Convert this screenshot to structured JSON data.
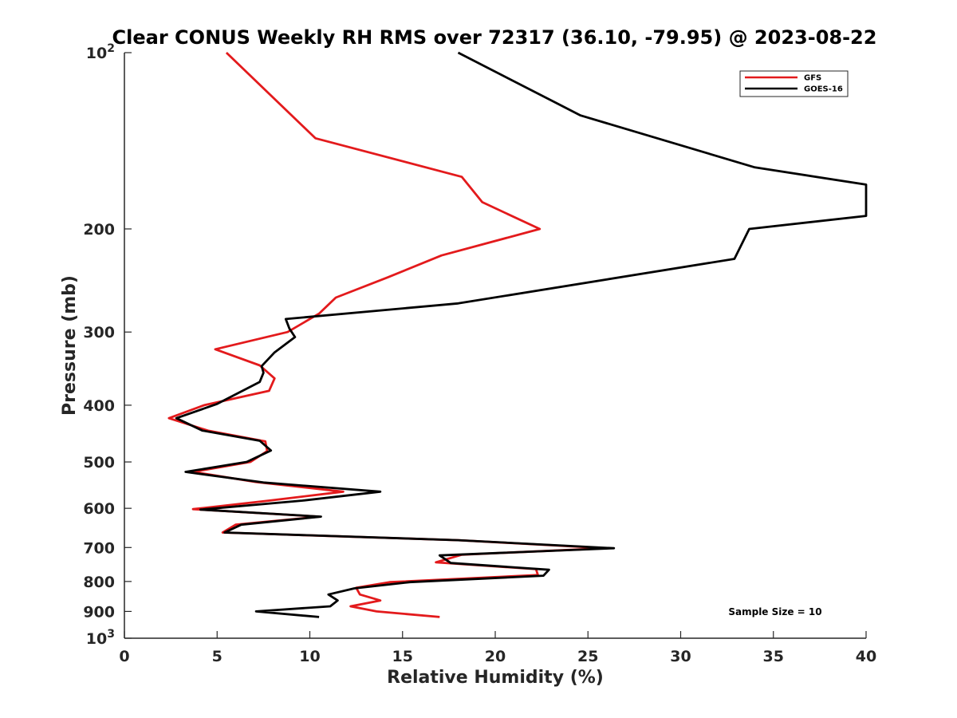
{
  "chart_data": {
    "type": "line",
    "title": "Clear CONUS Weekly RH RMS over 72317 (36.10, -79.95) @ 2023-08-22",
    "xlabel": "Relative Humidity (%)",
    "ylabel": "Pressure (mb)",
    "xlim": [
      0,
      40
    ],
    "ylim": [
      100,
      1000
    ],
    "y_scale": "log",
    "y_reversed": true,
    "grid": false,
    "legend_location": "top-right",
    "x_ticks": [
      {
        "value": 0,
        "label": "0"
      },
      {
        "value": 5,
        "label": "5"
      },
      {
        "value": 10,
        "label": "10"
      },
      {
        "value": 15,
        "label": "15"
      },
      {
        "value": 20,
        "label": "20"
      },
      {
        "value": 25,
        "label": "25"
      },
      {
        "value": 30,
        "label": "30"
      },
      {
        "value": 35,
        "label": "35"
      },
      {
        "value": 40,
        "label": "40"
      }
    ],
    "y_ticks": [
      {
        "value": 100,
        "base": "10",
        "exp": "2"
      },
      {
        "value": 200,
        "base": "200",
        "exp": ""
      },
      {
        "value": 300,
        "base": "300",
        "exp": ""
      },
      {
        "value": 400,
        "base": "400",
        "exp": ""
      },
      {
        "value": 500,
        "base": "500",
        "exp": ""
      },
      {
        "value": 600,
        "base": "600",
        "exp": ""
      },
      {
        "value": 700,
        "base": "700",
        "exp": ""
      },
      {
        "value": 800,
        "base": "800",
        "exp": ""
      },
      {
        "value": 900,
        "base": "900",
        "exp": ""
      },
      {
        "value": 1000,
        "base": "10",
        "exp": "3"
      }
    ],
    "annotation": "Sample Size = 10",
    "series": [
      {
        "name": "GFS",
        "color": "#e31a1c",
        "points": [
          [
            5.5,
            100
          ],
          [
            10.3,
            140
          ],
          [
            18.2,
            163
          ],
          [
            19.3,
            180
          ],
          [
            22.4,
            200
          ],
          [
            17.1,
            222
          ],
          [
            14.2,
            242
          ],
          [
            11.4,
            262
          ],
          [
            10.5,
            279
          ],
          [
            8.8,
            300
          ],
          [
            4.9,
            321
          ],
          [
            7.3,
            342
          ],
          [
            8.1,
            360
          ],
          [
            7.8,
            378
          ],
          [
            4.3,
            400
          ],
          [
            2.4,
            421
          ],
          [
            4.5,
            442
          ],
          [
            7.6,
            461
          ],
          [
            7.7,
            479
          ],
          [
            6.8,
            500
          ],
          [
            3.7,
            520
          ],
          [
            7.1,
            541
          ],
          [
            11.8,
            562
          ],
          [
            7.8,
            582
          ],
          [
            3.7,
            602
          ],
          [
            10.5,
            620
          ],
          [
            6.0,
            640
          ],
          [
            5.3,
            660
          ],
          [
            18.0,
            680
          ],
          [
            26.0,
            702
          ],
          [
            18.2,
            720
          ],
          [
            16.8,
            742
          ],
          [
            22.2,
            762
          ],
          [
            22.3,
            780
          ],
          [
            14.3,
            802
          ],
          [
            12.5,
            820
          ],
          [
            12.7,
            842
          ],
          [
            13.8,
            862
          ],
          [
            12.2,
            882
          ],
          [
            13.6,
            900
          ],
          [
            17.0,
            920
          ]
        ]
      },
      {
        "name": "GOES-16",
        "color": "#000000",
        "points": [
          [
            18.0,
            100
          ],
          [
            24.6,
            128
          ],
          [
            34.0,
            157
          ],
          [
            40.0,
            168
          ],
          [
            40.0,
            190
          ],
          [
            33.7,
            200
          ],
          [
            32.9,
            225
          ],
          [
            18.0,
            268
          ],
          [
            8.7,
            285
          ],
          [
            8.9,
            296
          ],
          [
            9.2,
            306
          ],
          [
            8.1,
            325
          ],
          [
            7.4,
            343
          ],
          [
            7.5,
            352
          ],
          [
            7.3,
            365
          ],
          [
            5.0,
            398
          ],
          [
            2.8,
            421
          ],
          [
            4.2,
            442
          ],
          [
            7.3,
            460
          ],
          [
            7.9,
            478
          ],
          [
            6.6,
            500
          ],
          [
            3.3,
            520
          ],
          [
            7.5,
            542
          ],
          [
            13.8,
            562
          ],
          [
            9.6,
            582
          ],
          [
            4.1,
            603
          ],
          [
            10.6,
            620
          ],
          [
            6.3,
            640
          ],
          [
            5.4,
            660
          ],
          [
            18.0,
            680
          ],
          [
            26.4,
            702
          ],
          [
            17.0,
            722
          ],
          [
            17.6,
            744
          ],
          [
            22.9,
            764
          ],
          [
            22.6,
            782
          ],
          [
            15.4,
            802
          ],
          [
            12.4,
            822
          ],
          [
            11.0,
            842
          ],
          [
            11.5,
            862
          ],
          [
            11.1,
            882
          ],
          [
            7.1,
            900
          ],
          [
            10.5,
            920
          ]
        ]
      }
    ]
  }
}
